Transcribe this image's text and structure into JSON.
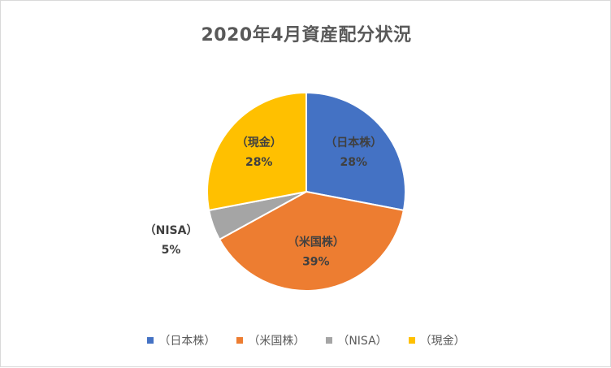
{
  "chart_data": {
    "type": "pie",
    "title": "2020年4月資産配分状況",
    "categories": [
      "（日本株）",
      "（米国株）",
      "（NISA）",
      "（現金）"
    ],
    "values": [
      28,
      39,
      5,
      28
    ],
    "value_labels": [
      "28%",
      "39%",
      "5%",
      "28%"
    ],
    "colors": [
      "#4472c4",
      "#ed7d31",
      "#a5a5a5",
      "#ffc000"
    ],
    "legend_position": "bottom",
    "start_angle": "12 o'clock, clockwise"
  }
}
